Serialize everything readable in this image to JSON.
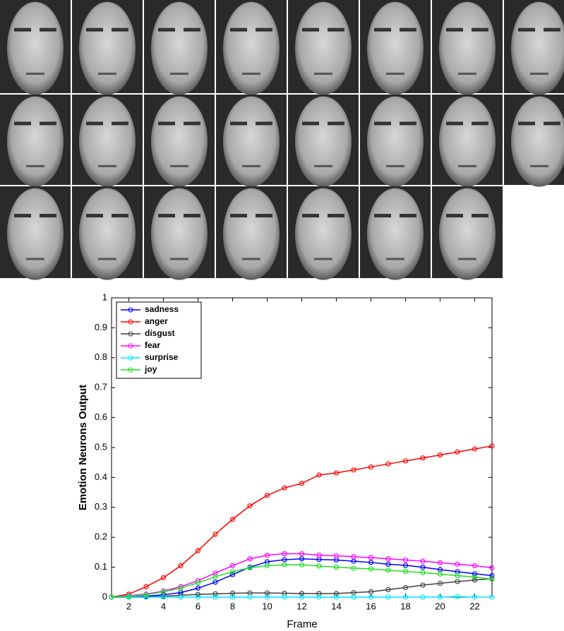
{
  "chart_data": {
    "type": "line",
    "x_label": "Frame",
    "y_label": "Emotion Neurons Output",
    "x": [
      1,
      2,
      3,
      4,
      5,
      6,
      7,
      8,
      9,
      10,
      11,
      12,
      13,
      14,
      15,
      16,
      17,
      18,
      19,
      20,
      21,
      22,
      23
    ],
    "xlim": [
      1,
      23
    ],
    "xticks": [
      2,
      4,
      6,
      8,
      10,
      12,
      14,
      16,
      18,
      20,
      22
    ],
    "ylim": [
      0,
      1
    ],
    "yticks": [
      0,
      0.1,
      0.2,
      0.3,
      0.4,
      0.5,
      0.6,
      0.7,
      0.8,
      0.9,
      1
    ],
    "legend": "upper-left",
    "series": [
      {
        "name": "sadness",
        "color": "#0000ff",
        "values": [
          0,
          0,
          0.003,
          0.008,
          0.015,
          0.03,
          0.05,
          0.075,
          0.1,
          0.118,
          0.125,
          0.128,
          0.126,
          0.124,
          0.12,
          0.116,
          0.11,
          0.106,
          0.1,
          0.092,
          0.085,
          0.078,
          0.072
        ]
      },
      {
        "name": "anger",
        "color": "#ff0000",
        "values": [
          0,
          0.01,
          0.035,
          0.065,
          0.105,
          0.155,
          0.21,
          0.26,
          0.305,
          0.34,
          0.365,
          0.38,
          0.408,
          0.415,
          0.425,
          0.435,
          0.445,
          0.455,
          0.465,
          0.475,
          0.485,
          0.495,
          0.505
        ]
      },
      {
        "name": "disgust",
        "color": "#404040",
        "values": [
          0,
          0,
          0,
          0.003,
          0.006,
          0.009,
          0.011,
          0.013,
          0.014,
          0.014,
          0.013,
          0.012,
          0.012,
          0.012,
          0.015,
          0.018,
          0.025,
          0.032,
          0.04,
          0.046,
          0.052,
          0.057,
          0.062
        ]
      },
      {
        "name": "fear",
        "color": "#ff00ff",
        "values": [
          0,
          0.005,
          0.01,
          0.02,
          0.035,
          0.055,
          0.08,
          0.105,
          0.128,
          0.14,
          0.145,
          0.145,
          0.14,
          0.138,
          0.135,
          0.132,
          0.128,
          0.124,
          0.12,
          0.115,
          0.11,
          0.105,
          0.098
        ]
      },
      {
        "name": "surprise",
        "color": "#00e5ff",
        "values": [
          0,
          0,
          0,
          0,
          0,
          0,
          0,
          0,
          0,
          0,
          0,
          0,
          0,
          0,
          0,
          0,
          0,
          0,
          0,
          0,
          0.002,
          0,
          0
        ]
      },
      {
        "name": "joy",
        "color": "#22dd22",
        "values": [
          0,
          0.003,
          0.008,
          0.018,
          0.03,
          0.048,
          0.068,
          0.085,
          0.098,
          0.105,
          0.108,
          0.108,
          0.104,
          0.1,
          0.097,
          0.094,
          0.09,
          0.086,
          0.082,
          0.077,
          0.072,
          0.067,
          0.06
        ]
      }
    ]
  }
}
